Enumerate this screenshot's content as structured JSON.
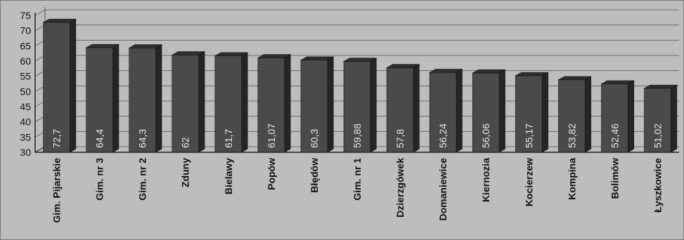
{
  "chart_data": {
    "type": "bar",
    "style": "3d-columns",
    "categories": [
      "Gim. Pijarskie",
      "Gim. nr 3",
      "Gim. nr 2",
      "Zduny",
      "Bielawy",
      "Popów",
      "Błędów",
      "Gim. nr 1",
      "Dzierzgówek",
      "Domaniewice",
      "Kiernozia",
      "Kocierzew",
      "Kompina",
      "Bolimów",
      "Łyszkowice"
    ],
    "values": [
      72.7,
      64.4,
      64.3,
      62,
      61.7,
      61.07,
      60.3,
      59.88,
      57.8,
      56.24,
      56.06,
      55.17,
      53.82,
      52.46,
      51.02
    ],
    "value_labels": [
      "72,7",
      "64,4",
      "64,3",
      "62",
      "61,7",
      "61,07",
      "60,3",
      "59,88",
      "57,8",
      "56,24",
      "56,06",
      "55,17",
      "53,82",
      "52,46",
      "51,02"
    ],
    "yticks": [
      "30",
      "35",
      "40",
      "45",
      "50",
      "55",
      "60",
      "65",
      "70",
      "75"
    ],
    "ylim": [
      30,
      75
    ],
    "grid": true,
    "legend": "none",
    "colors": {
      "bar_front": "#4a4a4a",
      "bar_top": "#2f2f2f",
      "bar_side": "#252525",
      "background": "#bdbdbd",
      "grid": "#6a6a6a",
      "value_label": "#e8e8e8"
    }
  }
}
